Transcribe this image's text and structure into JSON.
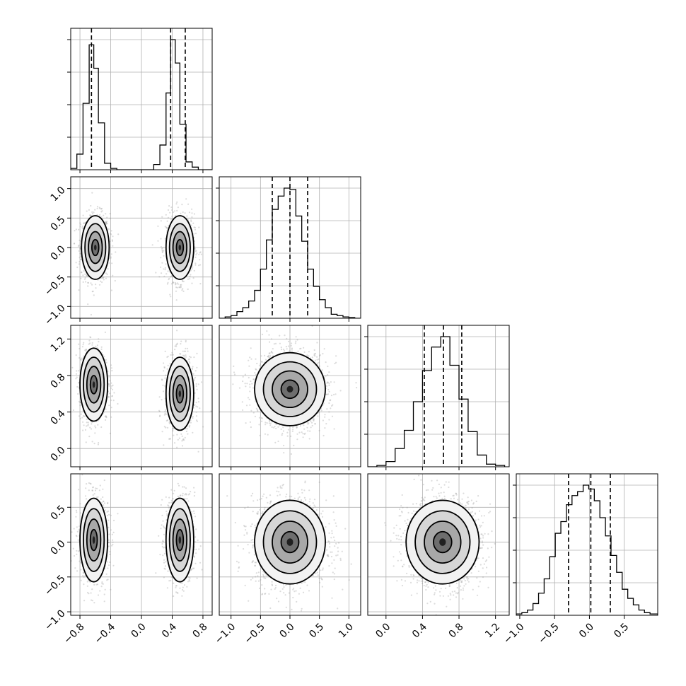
{
  "chart_data": {
    "type": "corner",
    "n_params": 4,
    "grid": true,
    "parameters": [
      {
        "index": 0,
        "range": [
          -0.92,
          0.92
        ],
        "ticks": [
          -0.8,
          -0.4,
          0.0,
          0.4,
          0.8
        ],
        "tick_labels": [
          "−0.8",
          "−0.4",
          "0.0",
          "0.4",
          "0.8"
        ]
      },
      {
        "index": 1,
        "range": [
          -1.2,
          1.2
        ],
        "ticks": [
          -1.0,
          -0.5,
          0.0,
          0.5,
          1.0
        ],
        "tick_labels": [
          "−1.0",
          "−0.5",
          "0.0",
          "0.5",
          "1.0"
        ]
      },
      {
        "index": 2,
        "range": [
          -0.2,
          1.35
        ],
        "ticks": [
          0.0,
          0.4,
          0.8,
          1.2
        ],
        "tick_labels": [
          "0.0",
          "0.4",
          "0.8",
          "1.2"
        ]
      },
      {
        "index": 3,
        "range": [
          -1.05,
          0.98
        ],
        "ticks": [
          -1.0,
          -0.5,
          0.0,
          0.5
        ],
        "tick_labels": [
          "−1.0",
          "−0.5",
          "0.0",
          "0.5"
        ]
      }
    ],
    "histograms": [
      {
        "param": 0,
        "bins": [
          -0.92,
          -0.84,
          -0.76,
          -0.68,
          -0.62,
          -0.56,
          -0.48,
          -0.4,
          -0.32,
          -0.24,
          -0.16,
          -0.08,
          0.0,
          0.08,
          0.16,
          0.24,
          0.32,
          0.38,
          0.44,
          0.5,
          0.58,
          0.66,
          0.74,
          0.82,
          0.92
        ],
        "counts": [
          0.01,
          0.12,
          0.51,
          0.96,
          0.78,
          0.36,
          0.05,
          0.01,
          0,
          0,
          0,
          0,
          0,
          0,
          0.04,
          0.19,
          0.59,
          1.0,
          0.82,
          0.35,
          0.06,
          0.02,
          0.0,
          0.0
        ],
        "quantiles": [
          -0.65,
          0.38,
          0.57
        ]
      },
      {
        "param": 1,
        "bins": [
          -1.2,
          -1.1,
          -1.0,
          -0.9,
          -0.8,
          -0.7,
          -0.6,
          -0.5,
          -0.4,
          -0.3,
          -0.2,
          -0.1,
          0.0,
          0.1,
          0.2,
          0.3,
          0.4,
          0.5,
          0.6,
          0.7,
          0.8,
          0.9,
          1.0,
          1.1,
          1.2
        ],
        "counts": [
          0.0,
          0.01,
          0.02,
          0.05,
          0.08,
          0.13,
          0.21,
          0.37,
          0.59,
          0.82,
          0.92,
          0.98,
          0.97,
          0.77,
          0.58,
          0.37,
          0.24,
          0.14,
          0.08,
          0.03,
          0.02,
          0.01,
          0.005,
          0.0
        ],
        "quantiles": [
          -0.3,
          0.0,
          0.3
        ]
      },
      {
        "param": 2,
        "bins": [
          -0.2,
          -0.1,
          0.0,
          0.1,
          0.2,
          0.3,
          0.4,
          0.5,
          0.6,
          0.7,
          0.8,
          0.9,
          1.0,
          1.1,
          1.2,
          1.3
        ],
        "counts": [
          0.0,
          0.01,
          0.04,
          0.14,
          0.28,
          0.5,
          0.74,
          0.92,
          1.0,
          0.78,
          0.52,
          0.27,
          0.09,
          0.02,
          0.01
        ],
        "quantiles": [
          0.42,
          0.63,
          0.83
        ]
      },
      {
        "param": 3,
        "bins": [
          -1.05,
          -0.97,
          -0.89,
          -0.81,
          -0.73,
          -0.65,
          -0.57,
          -0.49,
          -0.41,
          -0.33,
          -0.25,
          -0.17,
          -0.09,
          -0.01,
          0.07,
          0.15,
          0.23,
          0.31,
          0.39,
          0.47,
          0.55,
          0.63,
          0.71,
          0.79,
          0.87,
          0.98
        ],
        "counts": [
          0.01,
          0.02,
          0.04,
          0.09,
          0.17,
          0.28,
          0.45,
          0.63,
          0.72,
          0.85,
          0.92,
          0.95,
          1.0,
          0.97,
          0.88,
          0.75,
          0.61,
          0.46,
          0.33,
          0.2,
          0.13,
          0.08,
          0.04,
          0.02,
          0.01
        ],
        "quantiles": [
          -0.3,
          0.02,
          0.3
        ]
      }
    ],
    "scatter_panels": [
      {
        "x_param": 0,
        "y_param": 1,
        "blobs": [
          {
            "cx": -0.6,
            "cy": 0.0,
            "sx": 0.09,
            "sy": 0.27
          },
          {
            "cx": 0.5,
            "cy": 0.0,
            "sx": 0.09,
            "sy": 0.27
          }
        ]
      },
      {
        "x_param": 0,
        "y_param": 2,
        "blobs": [
          {
            "cx": -0.62,
            "cy": 0.7,
            "sx": 0.09,
            "sy": 0.2
          },
          {
            "cx": 0.5,
            "cy": 0.6,
            "sx": 0.09,
            "sy": 0.2
          }
        ]
      },
      {
        "x_param": 1,
        "y_param": 2,
        "blobs": [
          {
            "cx": 0.0,
            "cy": 0.65,
            "sx": 0.3,
            "sy": 0.2
          }
        ]
      },
      {
        "x_param": 0,
        "y_param": 3,
        "blobs": [
          {
            "cx": -0.62,
            "cy": 0.03,
            "sx": 0.09,
            "sy": 0.3
          },
          {
            "cx": 0.5,
            "cy": 0.03,
            "sx": 0.09,
            "sy": 0.3
          }
        ]
      },
      {
        "x_param": 1,
        "y_param": 3,
        "blobs": [
          {
            "cx": 0.0,
            "cy": 0.0,
            "sx": 0.3,
            "sy": 0.3
          }
        ]
      },
      {
        "x_param": 2,
        "y_param": 3,
        "blobs": [
          {
            "cx": 0.62,
            "cy": 0.0,
            "sx": 0.2,
            "sy": 0.3
          }
        ]
      }
    ],
    "contour_levels_sigma": [
      0.5,
      1.0,
      1.5,
      2.0
    ]
  }
}
